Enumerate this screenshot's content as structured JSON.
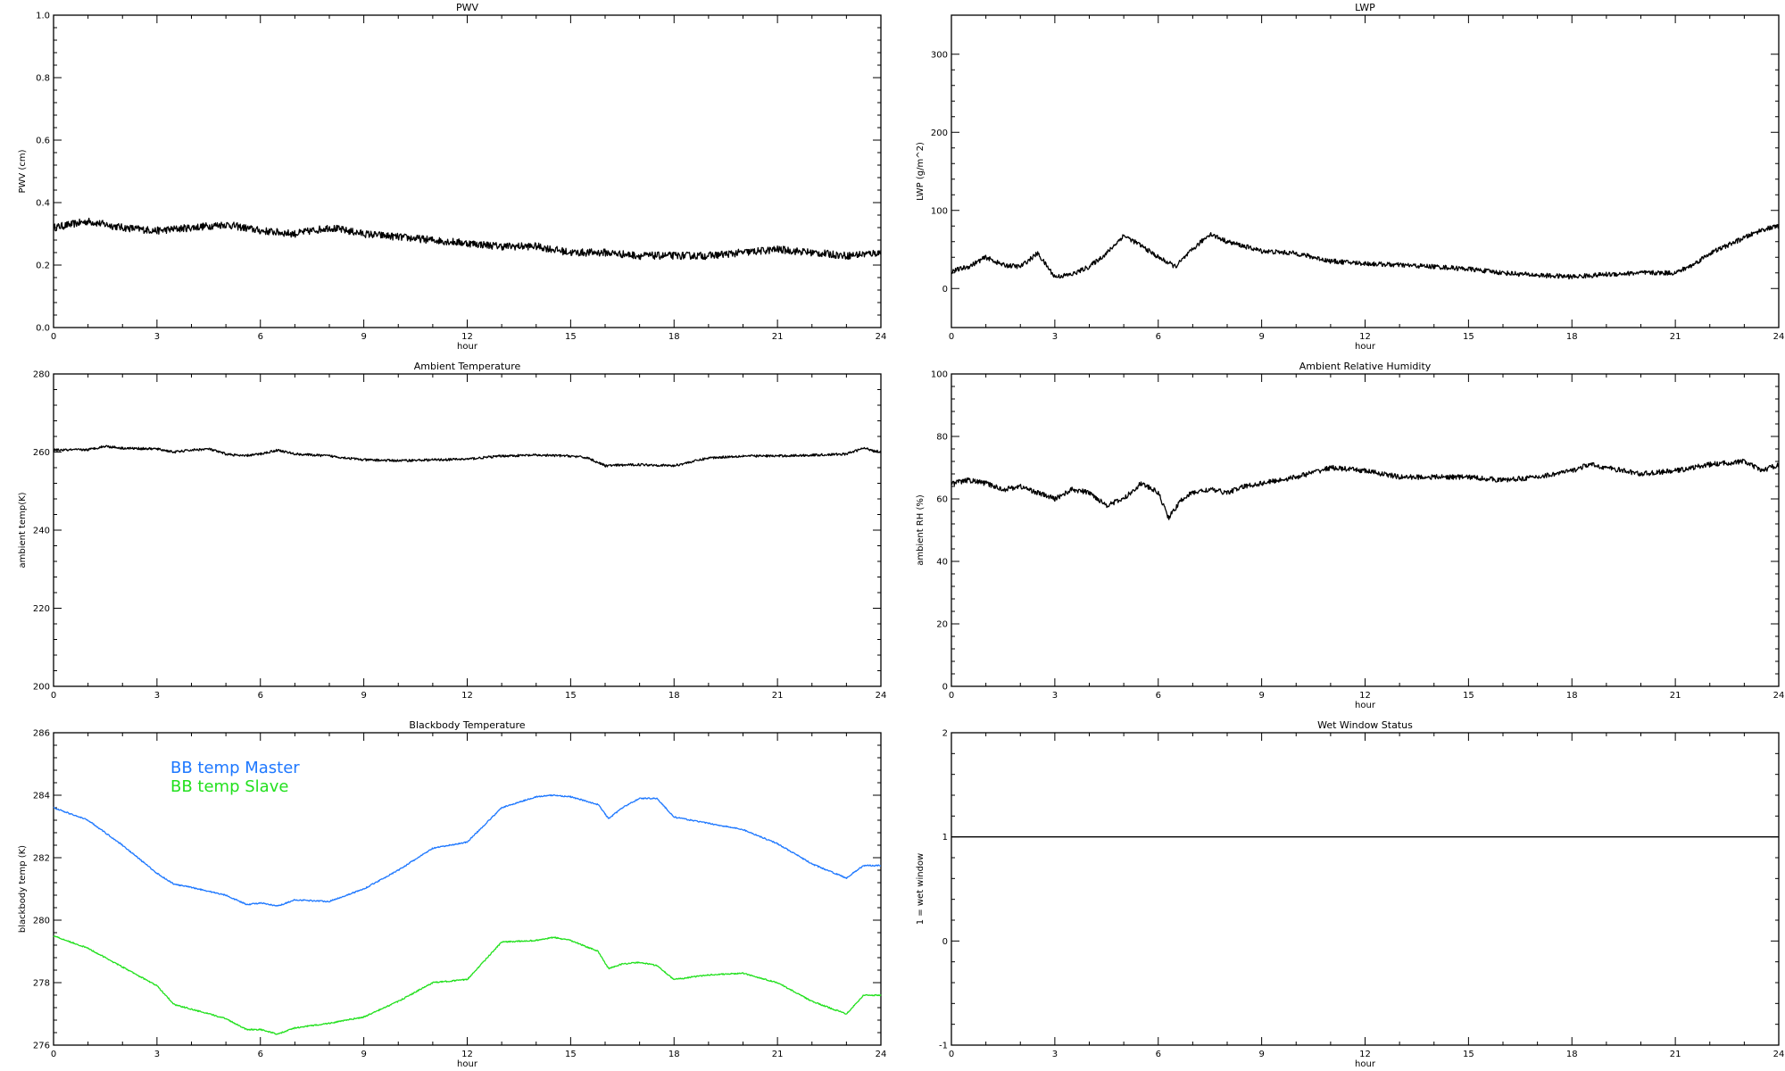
{
  "chart_data": [
    {
      "id": "pwv",
      "type": "line",
      "title": "PWV",
      "xlabel": "hour",
      "ylabel": "PWV (cm)",
      "xlim": [
        0,
        24
      ],
      "ylim": [
        0,
        1
      ],
      "xticks": [
        0,
        3,
        6,
        9,
        12,
        15,
        18,
        21,
        24
      ],
      "xticklabels": [
        "0",
        "3",
        "6",
        "9",
        "12",
        "15",
        "18",
        "21",
        "24"
      ],
      "yticks": [
        0,
        0.2,
        0.4,
        0.6,
        0.8,
        1.0
      ],
      "yticklabels": [
        "0.0",
        "0.2",
        "0.4",
        "0.6",
        "0.8",
        "1.0"
      ],
      "series": [
        {
          "color": "#000000",
          "noise": 0.012,
          "x": [
            0,
            1,
            2,
            3,
            4,
            5,
            6,
            7,
            8,
            9,
            10,
            11,
            12,
            13,
            14,
            15,
            16,
            17,
            18,
            19,
            20,
            21,
            22,
            23,
            24
          ],
          "y": [
            0.32,
            0.34,
            0.32,
            0.31,
            0.32,
            0.33,
            0.31,
            0.3,
            0.32,
            0.3,
            0.29,
            0.28,
            0.27,
            0.26,
            0.26,
            0.24,
            0.24,
            0.23,
            0.23,
            0.23,
            0.24,
            0.25,
            0.24,
            0.23,
            0.24
          ]
        }
      ]
    },
    {
      "id": "lwp",
      "type": "line",
      "title": "LWP",
      "xlabel": "hour",
      "ylabel": "LWP (g/m^2)",
      "xlim": [
        0,
        24
      ],
      "ylim": [
        -50,
        350
      ],
      "xticks": [
        0,
        3,
        6,
        9,
        12,
        15,
        18,
        21,
        24
      ],
      "xticklabels": [
        "0",
        "3",
        "6",
        "9",
        "12",
        "15",
        "18",
        "21",
        "24"
      ],
      "yticks": [
        0,
        100,
        200,
        300
      ],
      "yticklabels": [
        "0",
        "100",
        "200",
        "300"
      ],
      "series": [
        {
          "color": "#000000",
          "noise": 3,
          "x": [
            0,
            0.5,
            1,
            1.5,
            2,
            2.5,
            3,
            3.5,
            4,
            4.5,
            5,
            5.5,
            6,
            6.5,
            7,
            7.5,
            8,
            9,
            10,
            11,
            12,
            13,
            14,
            15,
            16,
            17,
            18,
            19,
            20,
            20.5,
            21,
            21.5,
            22,
            22.5,
            23,
            23.5,
            24
          ],
          "y": [
            22,
            28,
            40,
            30,
            28,
            45,
            15,
            18,
            28,
            45,
            68,
            55,
            40,
            28,
            50,
            70,
            60,
            48,
            45,
            35,
            32,
            30,
            28,
            25,
            20,
            17,
            15,
            18,
            20,
            20,
            20,
            30,
            45,
            55,
            65,
            75,
            80
          ]
        }
      ]
    },
    {
      "id": "ambient-temp",
      "type": "line",
      "title": "Ambient Temperature",
      "xlabel": "",
      "ylabel": "ambient temp(K)",
      "xlim": [
        0,
        24
      ],
      "ylim": [
        200,
        280
      ],
      "xticks": [
        0,
        3,
        6,
        9,
        12,
        15,
        18,
        21,
        24
      ],
      "xticklabels": [
        "0",
        "3",
        "6",
        "9",
        "12",
        "15",
        "18",
        "21",
        "24"
      ],
      "yticks": [
        200,
        220,
        240,
        260,
        280
      ],
      "yticklabels": [
        "200",
        "220",
        "240",
        "260",
        "280"
      ],
      "series": [
        {
          "color": "#000000",
          "noise": 0.3,
          "x": [
            0,
            1,
            1.5,
            2,
            3,
            3.5,
            4,
            4.5,
            5,
            5.5,
            6,
            6.5,
            7,
            8,
            9,
            10,
            11,
            12,
            13,
            14,
            15,
            15.5,
            16,
            17,
            18,
            19,
            20,
            21,
            22,
            23,
            23.5,
            24
          ],
          "y": [
            260.5,
            260.6,
            261.5,
            261,
            260.8,
            260,
            260.5,
            260.8,
            259.5,
            259,
            259.5,
            260.5,
            259.5,
            259,
            258,
            257.8,
            258,
            258.2,
            259,
            259.2,
            259,
            258.5,
            256.5,
            256.8,
            256.5,
            258.5,
            259,
            259,
            259.2,
            259.5,
            261,
            260
          ]
        }
      ]
    },
    {
      "id": "ambient-rh",
      "type": "line",
      "title": "Ambient Relative Humidity",
      "xlabel": "hour",
      "ylabel": "ambient RH (%)",
      "xlim": [
        0,
        24
      ],
      "ylim": [
        0,
        100
      ],
      "xticks": [
        0,
        3,
        6,
        9,
        12,
        15,
        18,
        21,
        24
      ],
      "xticklabels": [
        "0",
        "3",
        "6",
        "9",
        "12",
        "15",
        "18",
        "21",
        "24"
      ],
      "yticks": [
        0,
        20,
        40,
        60,
        80,
        100
      ],
      "yticklabels": [
        "0",
        "20",
        "40",
        "60",
        "80",
        "100"
      ],
      "series": [
        {
          "color": "#000000",
          "noise": 0.8,
          "x": [
            0,
            0.5,
            1,
            1.5,
            2,
            2.5,
            3,
            3.5,
            4,
            4.5,
            5,
            5.5,
            6,
            6.3,
            6.7,
            7,
            7.5,
            8,
            8.5,
            9,
            10,
            11,
            12,
            13,
            14,
            15,
            16,
            17,
            18,
            18.5,
            19,
            20,
            21,
            22,
            23,
            23.5,
            24
          ],
          "y": [
            65,
            66,
            65,
            63,
            64,
            62,
            60,
            63,
            62,
            58,
            60,
            65,
            62,
            54,
            60,
            62,
            63,
            62,
            64,
            65,
            67,
            70,
            69,
            67,
            67,
            67,
            66,
            67,
            69,
            71,
            70,
            68,
            69,
            71,
            72,
            69,
            71
          ]
        }
      ]
    },
    {
      "id": "blackbody-temp",
      "type": "line",
      "title": "Blackbody Temperature",
      "xlabel": "hour",
      "ylabel": "blackbody temp (K)",
      "xlim": [
        0,
        24
      ],
      "ylim": [
        276,
        286
      ],
      "xticks": [
        0,
        3,
        6,
        9,
        12,
        15,
        18,
        21,
        24
      ],
      "xticklabels": [
        "0",
        "3",
        "6",
        "9",
        "12",
        "15",
        "18",
        "21",
        "24"
      ],
      "yticks": [
        276,
        278,
        280,
        282,
        284,
        286
      ],
      "yticklabels": [
        "276",
        "278",
        "280",
        "282",
        "284",
        "286"
      ],
      "legend": [
        {
          "label": "BB temp Master",
          "color": "#1e78ff"
        },
        {
          "label": "BB temp Slave",
          "color": "#22e01e"
        }
      ],
      "series": [
        {
          "name": "BB temp Master",
          "color": "#1e78ff",
          "noise": 0.02,
          "x": [
            0,
            1,
            2,
            3,
            3.5,
            4,
            5,
            5.6,
            6,
            6.5,
            7,
            8,
            9,
            10,
            11,
            12,
            13,
            14,
            14.5,
            15,
            15.8,
            16.1,
            16.5,
            17,
            17.5,
            18,
            19,
            20,
            21,
            22,
            23,
            23.5,
            24
          ],
          "y": [
            283.6,
            283.2,
            282.4,
            281.5,
            281.15,
            281.05,
            280.8,
            280.5,
            280.55,
            280.45,
            280.65,
            280.6,
            281.0,
            281.6,
            282.3,
            282.5,
            283.6,
            283.95,
            284.0,
            283.95,
            283.7,
            283.25,
            283.6,
            283.9,
            283.9,
            283.3,
            283.1,
            282.9,
            282.45,
            281.8,
            281.35,
            281.75,
            281.75
          ]
        },
        {
          "name": "BB temp Slave",
          "color": "#22e01e",
          "noise": 0.02,
          "x": [
            0,
            1,
            2,
            3,
            3.5,
            4,
            5,
            5.6,
            6,
            6.5,
            7,
            8,
            9,
            10,
            11,
            12,
            13,
            14,
            14.5,
            15,
            15.8,
            16.1,
            16.5,
            17,
            17.5,
            18,
            19,
            20,
            21,
            22,
            23,
            23.5,
            24
          ],
          "y": [
            279.5,
            279.1,
            278.5,
            277.9,
            277.3,
            277.15,
            276.85,
            276.5,
            276.5,
            276.35,
            276.55,
            276.7,
            276.9,
            277.4,
            278.0,
            278.1,
            279.3,
            279.35,
            279.45,
            279.35,
            279.0,
            278.45,
            278.6,
            278.65,
            278.55,
            278.1,
            278.25,
            278.3,
            278.0,
            277.4,
            277.0,
            277.6,
            277.6
          ]
        }
      ]
    },
    {
      "id": "wet-window",
      "type": "line",
      "title": "Wet Window Status",
      "xlabel": "hour",
      "ylabel": "1 = wet window",
      "xlim": [
        0,
        24
      ],
      "ylim": [
        -1,
        2
      ],
      "xticks": [
        0,
        3,
        6,
        9,
        12,
        15,
        18,
        21,
        24
      ],
      "xticklabels": [
        "0",
        "3",
        "6",
        "9",
        "12",
        "15",
        "18",
        "21",
        "24"
      ],
      "yticks": [
        -1,
        0,
        1,
        2
      ],
      "yticklabels": [
        "-1",
        "0",
        "1",
        "2"
      ],
      "series": [
        {
          "color": "#000000",
          "noise": 0,
          "x": [
            0,
            24
          ],
          "y": [
            1,
            1
          ]
        }
      ]
    }
  ]
}
